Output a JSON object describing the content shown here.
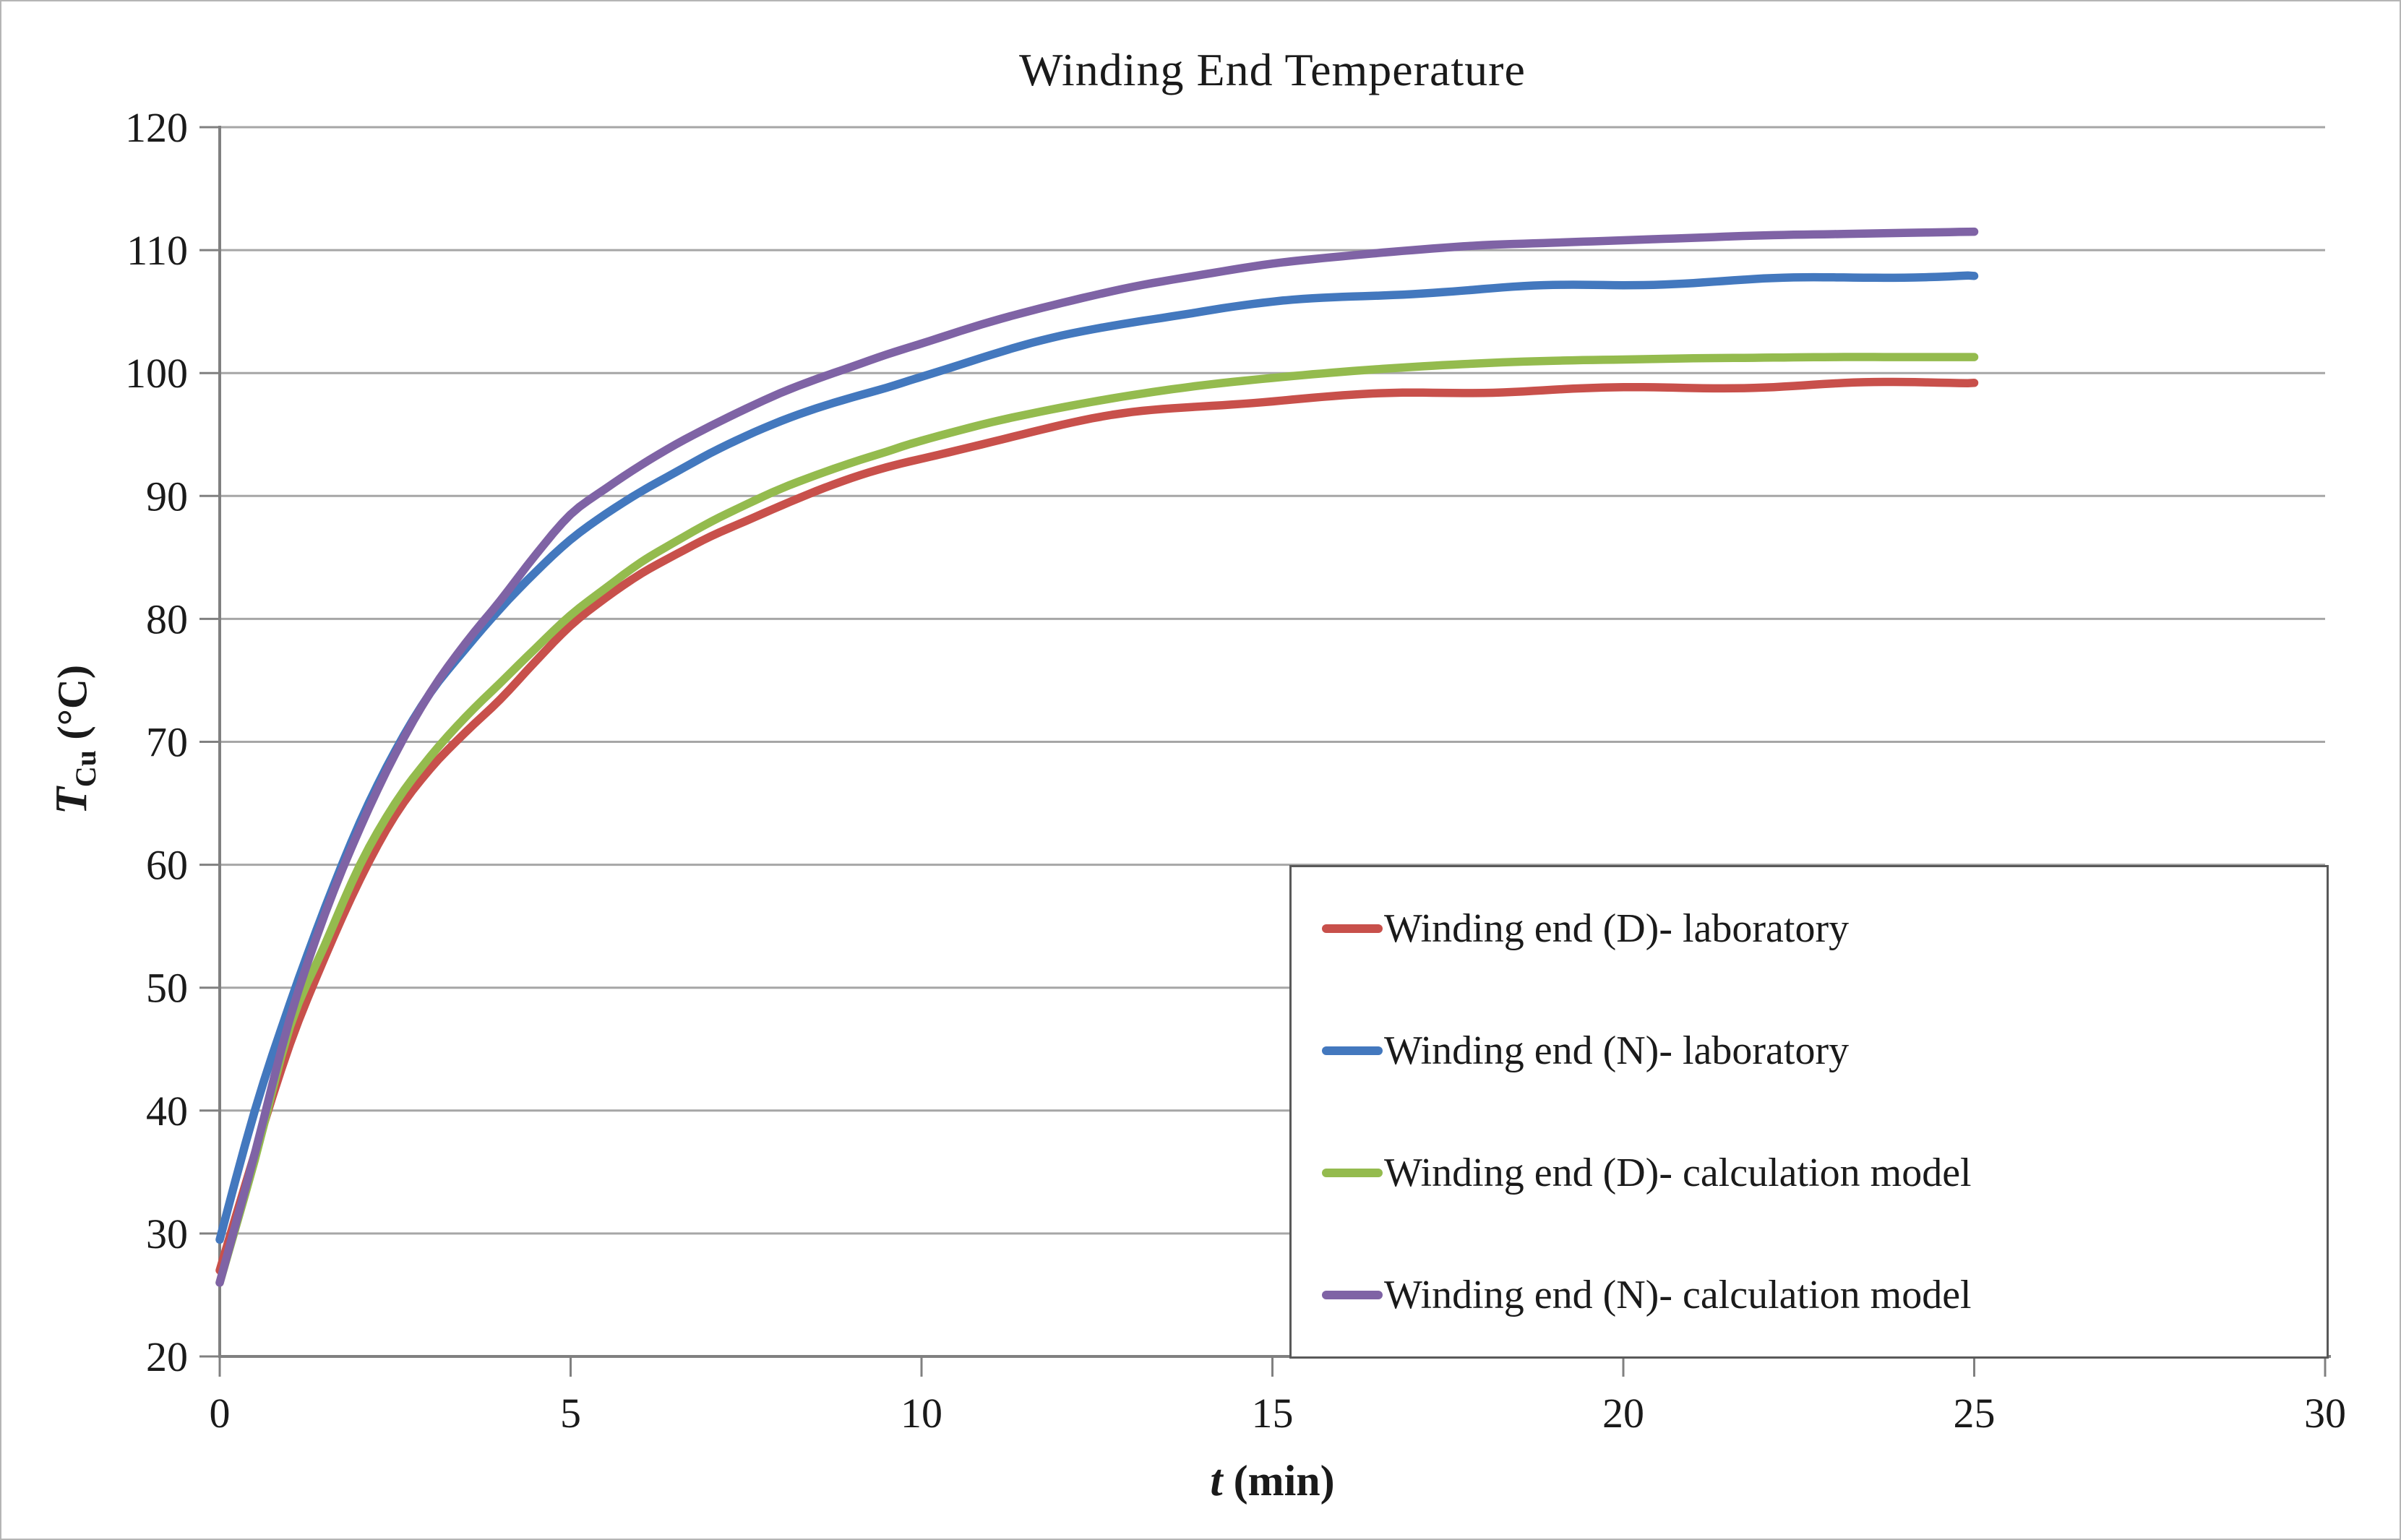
{
  "chart_data": {
    "type": "line",
    "title": "Winding End Temperature",
    "xlabel": "t (min)",
    "ylabel": "T_Cu (°C)",
    "xlabel_parts": {
      "var": "t",
      "unit": " (min)"
    },
    "ylabel_parts": {
      "var": "T",
      "sub": "Cu",
      "unit": " (°C)"
    },
    "xlim": [
      0,
      30
    ],
    "ylim": [
      20,
      120
    ],
    "xticks": [
      0,
      5,
      10,
      15,
      20,
      25,
      30
    ],
    "yticks": [
      20,
      30,
      40,
      50,
      60,
      70,
      80,
      90,
      100,
      110,
      120
    ],
    "grid": true,
    "gridline_color": "#a6a6a6",
    "axis_color": "#808080",
    "legend_position": "inside-bottom-right",
    "legend_border_color": "#595959",
    "x": [
      0,
      0.5,
      1,
      1.5,
      2,
      2.5,
      3,
      3.5,
      4,
      4.5,
      5,
      5.5,
      6,
      6.5,
      7,
      7.5,
      8,
      8.5,
      9,
      9.5,
      10,
      11,
      12,
      13,
      14,
      15,
      16,
      17,
      18,
      19,
      20,
      21,
      22,
      23,
      24,
      25
    ],
    "series": [
      {
        "name": "Winding end (D)- laboratory",
        "color": "#c8504b",
        "style": "noisy",
        "values": [
          27,
          36.5,
          45.4,
          52.5,
          58.8,
          64,
          67.8,
          70.8,
          73.5,
          76.5,
          79.3,
          81.5,
          83.5,
          85.2,
          86.8,
          88.1,
          89.3,
          90.4,
          91.4,
          92.3,
          93.1,
          94.6,
          95.8,
          96.7,
          97.3,
          97.7,
          98.0,
          98.3,
          98.5,
          98.7,
          98.8,
          98.9,
          99.0,
          99.1,
          99.15,
          99.2
        ]
      },
      {
        "name": "Winding end (N)- laboratory",
        "color": "#4378be",
        "style": "noisy",
        "values": [
          29.5,
          40,
          48.7,
          56.5,
          63.5,
          69.3,
          74,
          77.5,
          80.7,
          83.6,
          86.3,
          88.5,
          90.4,
          92,
          93.5,
          94.8,
          96,
          97.1,
          98.1,
          99,
          99.9,
          101.5,
          103,
          104.2,
          105,
          105.6,
          106.1,
          106.5,
          106.8,
          107.1,
          107.3,
          107.5,
          107.65,
          107.75,
          107.85,
          107.9
        ]
      },
      {
        "name": "Winding end (D)- calculation model",
        "color": "#94bb4e",
        "style": "smooth",
        "values": [
          26,
          36,
          46.8,
          53.5,
          60,
          65,
          68.8,
          72,
          74.8,
          77.6,
          80.3,
          82.5,
          84.6,
          86.3,
          87.9,
          89.3,
          90.6,
          91.7,
          92.7,
          93.6,
          94.5,
          96,
          97.2,
          98.2,
          99,
          99.6,
          100.1,
          100.5,
          100.8,
          101,
          101.1,
          101.2,
          101.25,
          101.3,
          101.3,
          101.3
        ]
      },
      {
        "name": "Winding end (N)- calculation model",
        "color": "#7f63a5",
        "style": "smooth",
        "values": [
          26,
          36.5,
          47.5,
          56,
          63,
          69,
          74,
          78,
          81.5,
          85.2,
          88.5,
          90.6,
          92.5,
          94.2,
          95.7,
          97.1,
          98.4,
          99.5,
          100.5,
          101.5,
          102.4,
          104.2,
          105.7,
          107,
          108,
          108.9,
          109.5,
          110,
          110.4,
          110.6,
          110.8,
          111,
          111.2,
          111.3,
          111.4,
          111.5
        ]
      }
    ]
  }
}
